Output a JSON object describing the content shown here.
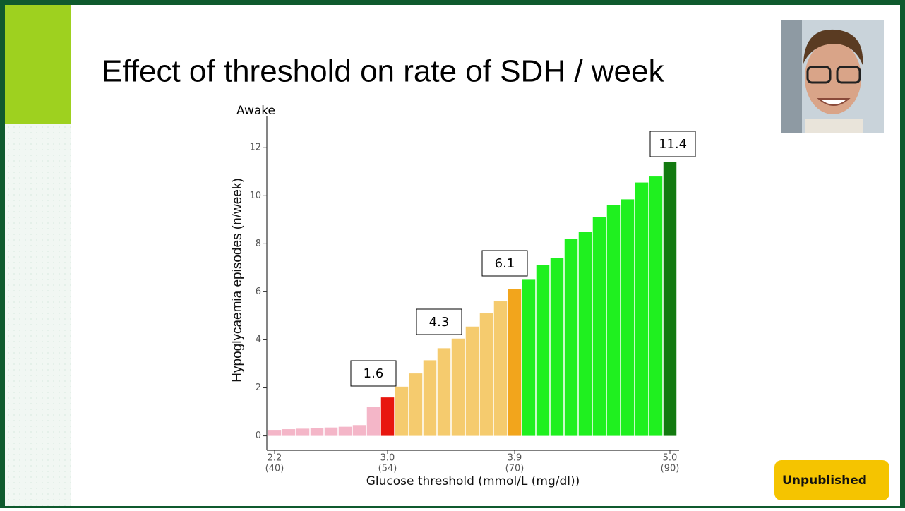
{
  "slide": {
    "title": "Effect of threshold on rate of SDH / week",
    "badge": "Unpublished"
  },
  "chart_data": {
    "type": "bar",
    "subtitle": "Awake",
    "y_label": "Hypoglycaemia episodes (n/week)",
    "x_label": "Glucose threshold (mmol/L (mg/dl))",
    "categories": [
      "2.2",
      null,
      null,
      null,
      null,
      null,
      null,
      null,
      "3.0",
      null,
      null,
      null,
      null,
      null,
      null,
      null,
      null,
      "3.9",
      null,
      null,
      null,
      null,
      null,
      null,
      null,
      null,
      null,
      null,
      "5.0"
    ],
    "categories_mgdl": [
      "(40)",
      null,
      null,
      null,
      null,
      null,
      null,
      null,
      "(54)",
      null,
      null,
      null,
      null,
      null,
      null,
      null,
      null,
      "(70)",
      null,
      null,
      null,
      null,
      null,
      null,
      null,
      null,
      null,
      null,
      "(90)"
    ],
    "values": [
      0.25,
      0.28,
      0.3,
      0.32,
      0.35,
      0.38,
      0.45,
      1.2,
      1.6,
      2.05,
      2.6,
      3.15,
      3.65,
      4.05,
      4.55,
      5.1,
      5.6,
      6.1,
      6.5,
      7.1,
      7.4,
      8.2,
      8.5,
      9.1,
      9.6,
      9.85,
      10.55,
      10.8,
      11.4
    ],
    "colors": [
      "#f4b6c8",
      "#f4b6c8",
      "#f4b6c8",
      "#f4b6c8",
      "#f4b6c8",
      "#f4b6c8",
      "#f4b6c8",
      "#f4b6c8",
      "#e8160e",
      "#f5cb6e",
      "#f5cb6e",
      "#f5cb6e",
      "#f5cb6e",
      "#f5cb6e",
      "#f5cb6e",
      "#f5cb6e",
      "#f5cb6e",
      "#f2a51c",
      "#1ff01f",
      "#1ff01f",
      "#1ff01f",
      "#1ff01f",
      "#1ff01f",
      "#1ff01f",
      "#1ff01f",
      "#1ff01f",
      "#1ff01f",
      "#1ff01f",
      "#137a10"
    ],
    "annotations": [
      1.6,
      4.3,
      6.1,
      11.4
    ],
    "ylim": [
      -0.6,
      13.3
    ],
    "yticks": [
      0,
      2,
      4,
      6,
      8,
      10,
      12
    ]
  }
}
